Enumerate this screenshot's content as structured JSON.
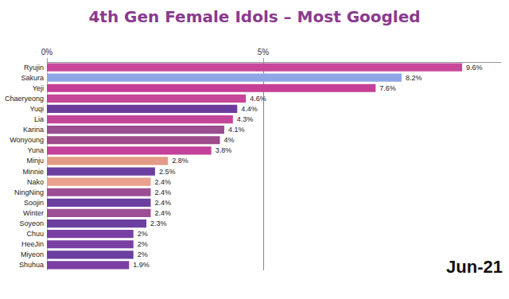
{
  "chart_data": {
    "type": "bar",
    "orientation": "horizontal",
    "title": "4th Gen Female Idols – Most Googled",
    "categories": [
      "Ryujin",
      "Sakura",
      "Yeji",
      "Chaeryeong",
      "Yuqi",
      "Lia",
      "Karina",
      "Wonyoung",
      "Yuna",
      "Minju",
      "Minnie",
      "Nako",
      "NingNing",
      "Soojin",
      "Winter",
      "Soyeon",
      "Chuu",
      "HeeJin",
      "Miyeon",
      "Shuhua"
    ],
    "values": [
      9.6,
      8.2,
      7.6,
      4.6,
      4.4,
      4.3,
      4.1,
      4,
      3.8,
      2.8,
      2.5,
      2.4,
      2.4,
      2.4,
      2.4,
      2.3,
      2,
      2,
      2,
      1.9
    ],
    "value_labels": [
      "9.6%",
      "8.2%",
      "7.6%",
      "4.6%",
      "4.4%",
      "4.3%",
      "4.1%",
      "4%",
      "3.8%",
      "2.8%",
      "2.5%",
      "2.4%",
      "2.4%",
      "2.4%",
      "2.4%",
      "2.3%",
      "2%",
      "2%",
      "2%",
      "1.9%"
    ],
    "colors": [
      "#c8479a",
      "#8fa6e6",
      "#c53f97",
      "#c44799",
      "#6c3c9c",
      "#c4469b",
      "#9a4e90",
      "#9d4a8a",
      "#c4409a",
      "#e39a86",
      "#6b3fa0",
      "#e9a08c",
      "#9b4e92",
      "#6a3fa0",
      "#9c4f93",
      "#6b3fa0",
      "#7a3fa3",
      "#7a3fa3",
      "#6b3fa0",
      "#7a3fa3"
    ],
    "xlim": [
      0,
      10.5
    ],
    "xticks": [
      {
        "value": 0,
        "label": "0%"
      },
      {
        "value": 5,
        "label": "5%"
      }
    ],
    "grid": true,
    "data_labels": true,
    "annotations": [
      "Jun-21"
    ]
  }
}
